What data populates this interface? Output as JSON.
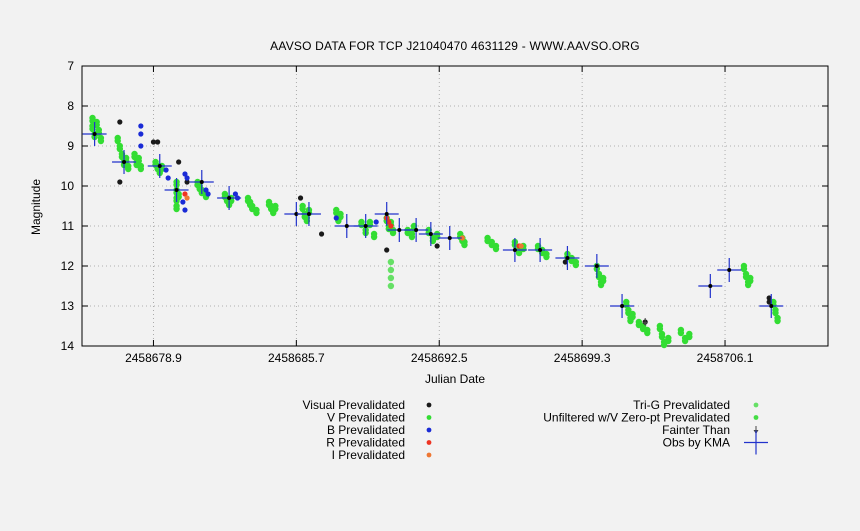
{
  "chart_data": {
    "type": "scatter",
    "title": "AAVSO DATA FOR TCP J21040470 4631129 - WWW.AAVSO.ORG",
    "xlabel": "Julian Date",
    "ylabel": "Magnitude",
    "xlim": [
      2458675.5,
      2458711.0
    ],
    "ylim": [
      14,
      7
    ],
    "y_inverted": true,
    "x_ticks": [
      "2458678.9",
      "2458685.7",
      "2458692.5",
      "2458699.3",
      "2458706.1"
    ],
    "y_ticks": [
      7,
      8,
      9,
      10,
      11,
      12,
      13,
      14
    ],
    "grid": true,
    "legend_placement": "bottom",
    "legend": [
      {
        "label": "Visual Prevalidated",
        "color": "#1a1a1a",
        "marker": "dot"
      },
      {
        "label": "V Prevalidated",
        "color": "#33dd33",
        "marker": "dot"
      },
      {
        "label": "B Prevalidated",
        "color": "#1a2bd6",
        "marker": "dot"
      },
      {
        "label": "R Prevalidated",
        "color": "#ee3322",
        "marker": "dot"
      },
      {
        "label": "I Prevalidated",
        "color": "#ee7733",
        "marker": "dot"
      },
      {
        "label": "Tri-G Prevalidated",
        "color": "#66e066",
        "marker": "dot"
      },
      {
        "label": "Unfiltered w/V Zero-pt Prevalidated",
        "color": "#44dd44",
        "marker": "dot"
      },
      {
        "label": "Fainter Than",
        "color": "#1a2bd6",
        "marker": "arrow"
      },
      {
        "label": "Obs by KMA",
        "color": "#2233cc",
        "marker": "cross"
      }
    ],
    "series": [
      {
        "name": "V Prevalidated",
        "color": "#33dd33",
        "points": [
          [
            2458676.0,
            8.3
          ],
          [
            2458676.0,
            8.5
          ],
          [
            2458676.1,
            8.7
          ],
          [
            2458676.2,
            8.4
          ],
          [
            2458676.3,
            8.6
          ],
          [
            2458676.4,
            8.8
          ],
          [
            2458677.2,
            8.8
          ],
          [
            2458677.3,
            9.0
          ],
          [
            2458677.4,
            9.2
          ],
          [
            2458677.5,
            9.4
          ],
          [
            2458677.6,
            9.3
          ],
          [
            2458677.7,
            9.5
          ],
          [
            2458678.0,
            9.2
          ],
          [
            2458678.1,
            9.4
          ],
          [
            2458678.2,
            9.3
          ],
          [
            2458678.3,
            9.5
          ],
          [
            2458679.0,
            9.4
          ],
          [
            2458679.1,
            9.5
          ],
          [
            2458679.2,
            9.6
          ],
          [
            2458679.3,
            9.5
          ],
          [
            2458680.0,
            9.9
          ],
          [
            2458680.0,
            10.1
          ],
          [
            2458680.0,
            10.3
          ],
          [
            2458680.0,
            10.5
          ],
          [
            2458680.1,
            10.2
          ],
          [
            2458681.0,
            9.9
          ],
          [
            2458681.1,
            10.0
          ],
          [
            2458681.2,
            10.1
          ],
          [
            2458681.4,
            10.2
          ],
          [
            2458682.3,
            10.2
          ],
          [
            2458682.4,
            10.3
          ],
          [
            2458682.5,
            10.4
          ],
          [
            2458682.6,
            10.3
          ],
          [
            2458683.4,
            10.3
          ],
          [
            2458683.5,
            10.4
          ],
          [
            2458683.6,
            10.5
          ],
          [
            2458683.8,
            10.6
          ],
          [
            2458684.4,
            10.4
          ],
          [
            2458684.5,
            10.5
          ],
          [
            2458684.6,
            10.6
          ],
          [
            2458684.7,
            10.5
          ],
          [
            2458686.0,
            10.5
          ],
          [
            2458686.1,
            10.7
          ],
          [
            2458686.2,
            10.8
          ],
          [
            2458686.3,
            10.6
          ],
          [
            2458687.6,
            10.6
          ],
          [
            2458687.7,
            10.8
          ],
          [
            2458687.8,
            10.7
          ],
          [
            2458688.8,
            10.9
          ],
          [
            2458689.0,
            11.1
          ],
          [
            2458689.2,
            10.9
          ],
          [
            2458689.4,
            11.2
          ],
          [
            2458690.0,
            10.8
          ],
          [
            2458690.1,
            11.0
          ],
          [
            2458690.2,
            10.9
          ],
          [
            2458690.3,
            11.1
          ],
          [
            2458691.0,
            11.1
          ],
          [
            2458691.2,
            11.2
          ],
          [
            2458691.3,
            11.0
          ],
          [
            2458692.0,
            11.1
          ],
          [
            2458692.2,
            11.3
          ],
          [
            2458692.4,
            11.2
          ],
          [
            2458693.5,
            11.2
          ],
          [
            2458693.6,
            11.3
          ],
          [
            2458693.7,
            11.4
          ],
          [
            2458694.8,
            11.3
          ],
          [
            2458695.0,
            11.4
          ],
          [
            2458695.2,
            11.5
          ],
          [
            2458696.1,
            11.4
          ],
          [
            2458696.3,
            11.6
          ],
          [
            2458696.5,
            11.5
          ],
          [
            2458697.2,
            11.5
          ],
          [
            2458697.4,
            11.6
          ],
          [
            2458697.6,
            11.7
          ],
          [
            2458698.6,
            11.7
          ],
          [
            2458698.8,
            11.8
          ],
          [
            2458699.0,
            11.9
          ],
          [
            2458700.0,
            12.0
          ],
          [
            2458700.1,
            12.2
          ],
          [
            2458700.2,
            12.4
          ],
          [
            2458700.3,
            12.3
          ],
          [
            2458701.4,
            12.9
          ],
          [
            2458701.5,
            13.1
          ],
          [
            2458701.6,
            13.3
          ],
          [
            2458701.7,
            13.2
          ],
          [
            2458702.0,
            13.4
          ],
          [
            2458702.2,
            13.5
          ],
          [
            2458702.4,
            13.6
          ],
          [
            2458703.0,
            13.5
          ],
          [
            2458703.1,
            13.7
          ],
          [
            2458703.2,
            13.9
          ],
          [
            2458703.4,
            13.8
          ],
          [
            2458704.0,
            13.6
          ],
          [
            2458704.2,
            13.8
          ],
          [
            2458704.4,
            13.7
          ],
          [
            2458707.0,
            12.0
          ],
          [
            2458707.1,
            12.2
          ],
          [
            2458707.2,
            12.4
          ],
          [
            2458707.3,
            12.3
          ],
          [
            2458708.4,
            12.9
          ],
          [
            2458708.5,
            13.1
          ],
          [
            2458708.6,
            13.3
          ]
        ]
      },
      {
        "name": "Visual Prevalidated",
        "color": "#1a1a1a",
        "points": [
          [
            2458677.3,
            8.4
          ],
          [
            2458677.3,
            9.9
          ],
          [
            2458678.9,
            8.9
          ],
          [
            2458679.1,
            8.9
          ],
          [
            2458680.1,
            9.4
          ],
          [
            2458680.5,
            9.9
          ],
          [
            2458685.9,
            10.3
          ],
          [
            2458686.9,
            11.2
          ],
          [
            2458690.0,
            11.6
          ],
          [
            2458692.4,
            11.5
          ],
          [
            2458698.5,
            11.9
          ],
          [
            2458702.3,
            13.4
          ],
          [
            2458708.2,
            12.8
          ],
          [
            2458708.2,
            12.9
          ]
        ]
      },
      {
        "name": "B Prevalidated",
        "color": "#1a2bd6",
        "points": [
          [
            2458678.3,
            8.5
          ],
          [
            2458678.3,
            8.7
          ],
          [
            2458678.3,
            9.0
          ],
          [
            2458679.5,
            9.6
          ],
          [
            2458679.6,
            9.8
          ],
          [
            2458680.4,
            9.7
          ],
          [
            2458680.5,
            9.8
          ],
          [
            2458680.3,
            10.4
          ],
          [
            2458680.4,
            10.6
          ],
          [
            2458681.4,
            10.1
          ],
          [
            2458681.5,
            10.2
          ],
          [
            2458682.8,
            10.2
          ],
          [
            2458682.9,
            10.3
          ],
          [
            2458687.6,
            10.8
          ],
          [
            2458689.5,
            10.9
          ]
        ]
      },
      {
        "name": "R Prevalidated",
        "color": "#ee3322",
        "points": [
          [
            2458680.4,
            10.2
          ],
          [
            2458690.0,
            10.8
          ],
          [
            2458690.1,
            10.9
          ],
          [
            2458690.2,
            11.0
          ],
          [
            2458696.3,
            11.5
          ]
        ]
      },
      {
        "name": "I Prevalidated",
        "color": "#ee7733",
        "points": [
          [
            2458680.5,
            10.3
          ],
          [
            2458693.6,
            11.3
          ],
          [
            2458696.4,
            11.5
          ]
        ]
      },
      {
        "name": "Tri-G Prevalidated",
        "color": "#66e066",
        "points": [
          [
            2458690.2,
            11.9
          ],
          [
            2458690.2,
            12.1
          ],
          [
            2458690.2,
            12.3
          ],
          [
            2458690.2,
            12.5
          ]
        ]
      },
      {
        "name": "Obs by KMA",
        "color": "#2233cc",
        "points": [
          [
            2458676.1,
            8.7
          ],
          [
            2458677.5,
            9.4
          ],
          [
            2458679.2,
            9.5
          ],
          [
            2458680.0,
            10.1
          ],
          [
            2458681.2,
            9.9
          ],
          [
            2458682.5,
            10.3
          ],
          [
            2458685.7,
            10.7
          ],
          [
            2458686.3,
            10.7
          ],
          [
            2458688.1,
            11.0
          ],
          [
            2458689.0,
            11.0
          ],
          [
            2458690.0,
            10.7
          ],
          [
            2458690.6,
            11.1
          ],
          [
            2458691.4,
            11.1
          ],
          [
            2458692.1,
            11.2
          ],
          [
            2458693.0,
            11.3
          ],
          [
            2458696.1,
            11.6
          ],
          [
            2458697.3,
            11.6
          ],
          [
            2458698.6,
            11.8
          ],
          [
            2458700.0,
            12.0
          ],
          [
            2458701.2,
            13.0
          ],
          [
            2458705.4,
            12.5
          ],
          [
            2458706.3,
            12.1
          ],
          [
            2458708.3,
            13.0
          ]
        ]
      },
      {
        "name": "Fainter Than",
        "color": "#1a2bd6",
        "points": [
          [
            2458702.3,
            13.4
          ]
        ]
      }
    ]
  }
}
